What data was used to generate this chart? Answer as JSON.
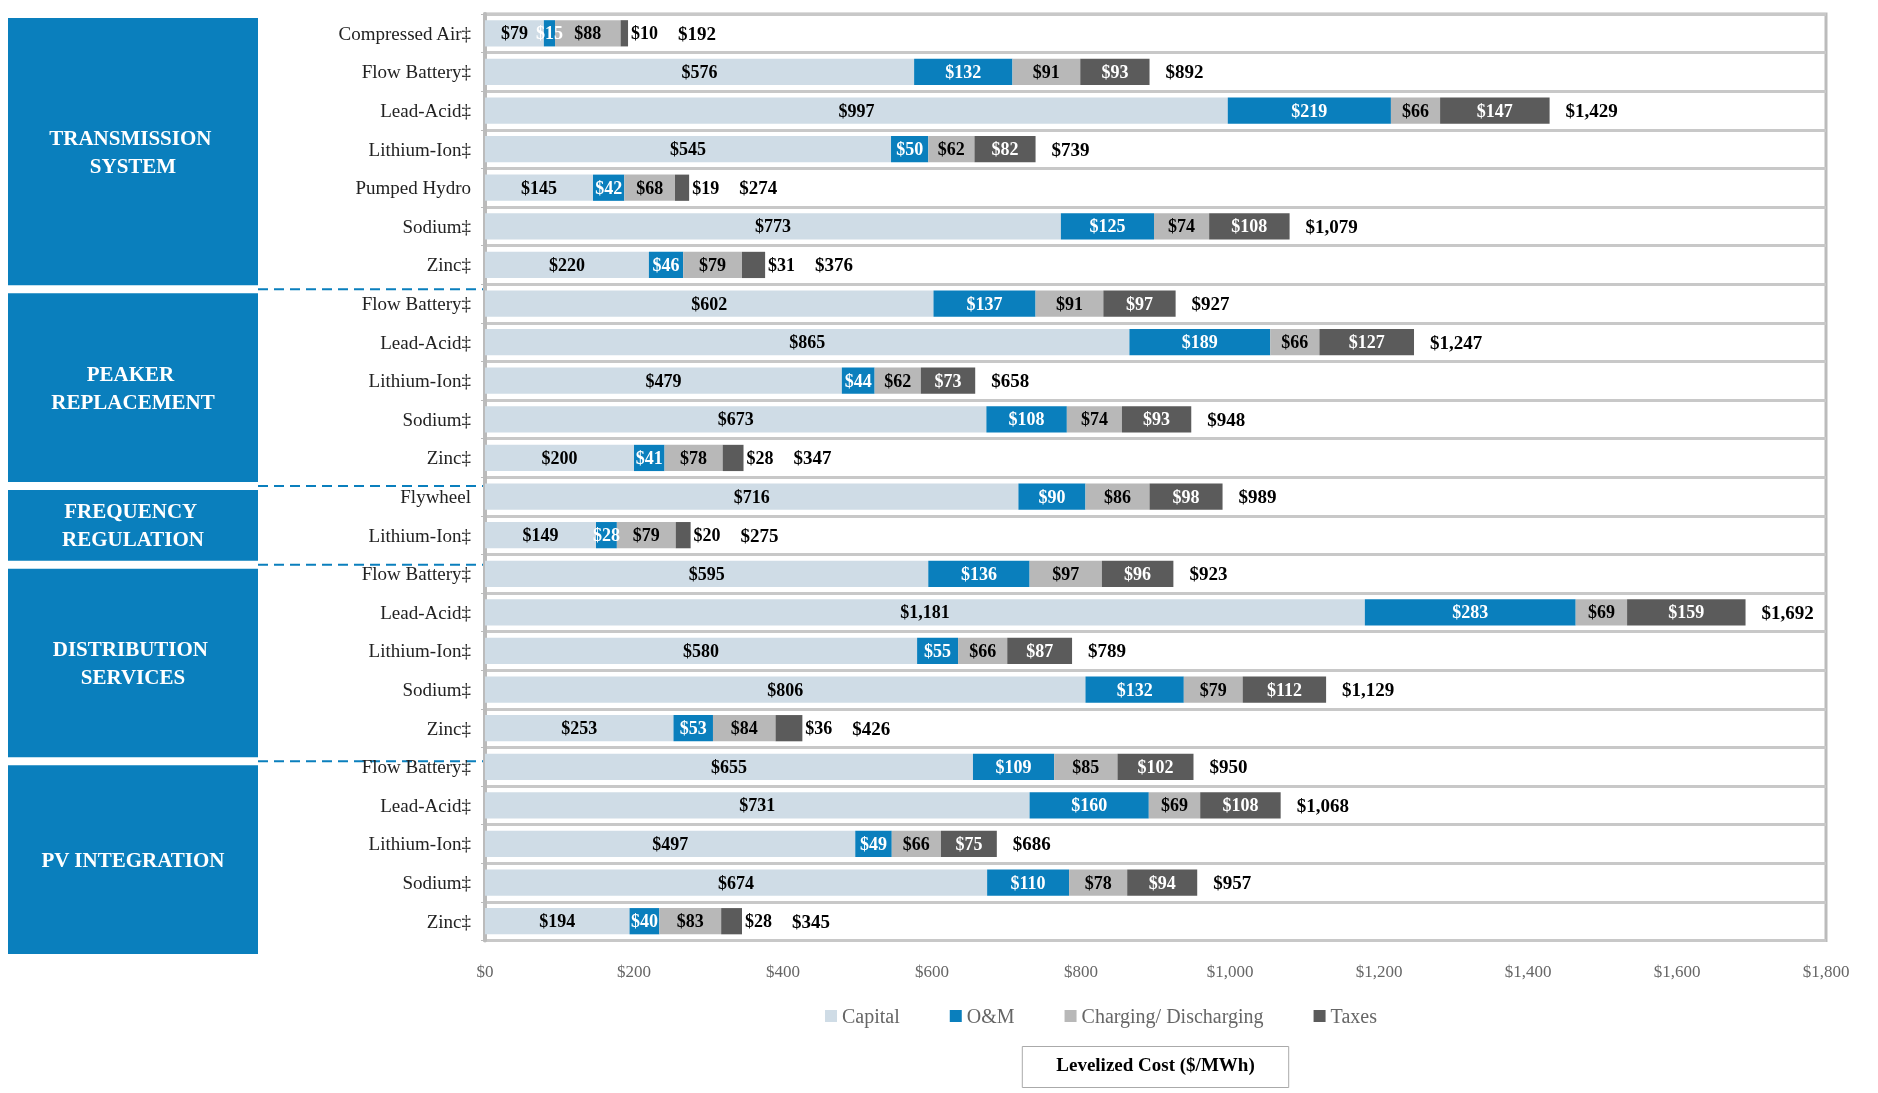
{
  "chart_data": {
    "type": "bar",
    "orientation": "horizontal",
    "stacked": true,
    "xlabel": "Levelized Cost ($/MWh)",
    "annotations": [
      "TRANSMISSION SYSTEM",
      "PEAKER REPLACEMENT",
      "FREQUENCY REGULATION",
      "DISTRIBUTION SERVICES",
      "PV INTEGRATION"
    ],
    "categories": [
      "Compressed Air‡",
      "Flow Battery‡",
      "Lead-Acid‡",
      "Lithium-Ion‡",
      "Pumped Hydro",
      "Sodium‡",
      "Zinc‡",
      "Flow Battery‡",
      "Lead-Acid‡",
      "Lithium-Ion‡",
      "Sodium‡",
      "Zinc‡",
      "Flywheel",
      "Lithium-Ion‡",
      "Flow Battery‡",
      "Lead-Acid‡",
      "Lithium-Ion‡",
      "Sodium‡",
      "Zinc‡",
      "Flow Battery‡",
      "Lead-Acid‡",
      "Lithium-Ion‡",
      "Sodium‡",
      "Zinc‡"
    ],
    "series": [
      {
        "name": "Capital",
        "color": "#cfdce6",
        "values": [
          79,
          576,
          997,
          545,
          145,
          773,
          220,
          602,
          865,
          479,
          673,
          200,
          716,
          149,
          595,
          1181,
          580,
          806,
          253,
          655,
          731,
          497,
          674,
          194
        ],
        "value_labels": [
          "$79",
          "$576",
          "$997",
          "$545",
          "$145",
          "$773",
          "$220",
          "$602",
          "$865",
          "$479",
          "$673",
          "$200",
          "$716",
          "$149",
          "$595",
          "$1,181",
          "$580",
          "$806",
          "$253",
          "$655",
          "$731",
          "$497",
          "$674",
          "$194"
        ]
      },
      {
        "name": "O&M",
        "color": "#0a7fbd",
        "values": [
          15,
          132,
          219,
          50,
          42,
          125,
          46,
          137,
          189,
          44,
          108,
          41,
          90,
          28,
          136,
          283,
          55,
          132,
          53,
          109,
          160,
          49,
          110,
          40
        ],
        "value_labels": [
          "$15",
          "$132",
          "$219",
          "$50",
          "$42",
          "$125",
          "$46",
          "$137",
          "$189",
          "$44",
          "$108",
          "$41",
          "$90",
          "$28",
          "$136",
          "$283",
          "$55",
          "$132",
          "$53",
          "$109",
          "$160",
          "$49",
          "$110",
          "$40"
        ]
      },
      {
        "name": "Charging/ Discharging",
        "color": "#b8b8b8",
        "values": [
          88,
          91,
          66,
          62,
          68,
          74,
          79,
          91,
          66,
          62,
          74,
          78,
          86,
          79,
          97,
          69,
          66,
          79,
          84,
          85,
          69,
          66,
          78,
          83
        ],
        "value_labels": [
          "$88",
          "$91",
          "$66",
          "$62",
          "$68",
          "$74",
          "$79",
          "$91",
          "$66",
          "$62",
          "$74",
          "$78",
          "$86",
          "$79",
          "$97",
          "$69",
          "$66",
          "$79",
          "$84",
          "$85",
          "$69",
          "$66",
          "$78",
          "$83"
        ]
      },
      {
        "name": "Taxes",
        "color": "#5b5b5b",
        "values": [
          10,
          93,
          147,
          82,
          19,
          108,
          31,
          97,
          127,
          73,
          93,
          28,
          98,
          20,
          96,
          159,
          87,
          112,
          36,
          102,
          108,
          75,
          94,
          28
        ],
        "value_labels": [
          "$10",
          "$93",
          "$147",
          "$82",
          "$19",
          "$108",
          "$31",
          "$97",
          "$127",
          "$73",
          "$93",
          "$28",
          "$98",
          "$20",
          "$96",
          "$159",
          "$87",
          "$112",
          "$36",
          "$102",
          "$108",
          "$75",
          "$94",
          "$28"
        ]
      }
    ],
    "totals": [
      "$192",
      "$892",
      "$1,429",
      "$739",
      "$274",
      "$1,079",
      "$376",
      "$927",
      "$1,247",
      "$658",
      "$948",
      "$347",
      "$989",
      "$275",
      "$923",
      "$1,692",
      "$789",
      "$1,129",
      "$426",
      "$950",
      "$1,068",
      "$686",
      "$957",
      "$345"
    ],
    "xlim": [
      0,
      1800
    ],
    "xticks": [
      {
        "value": 0,
        "label": "$0"
      },
      {
        "value": 200,
        "label": "$200"
      },
      {
        "value": 400,
        "label": "$400"
      },
      {
        "value": 600,
        "label": "$600"
      },
      {
        "value": 800,
        "label": "$800"
      },
      {
        "value": 1000,
        "label": "$1,000"
      },
      {
        "value": 1200,
        "label": "$1,200"
      },
      {
        "value": 1400,
        "label": "$1,400"
      },
      {
        "value": 1600,
        "label": "$1,600"
      },
      {
        "value": 1800,
        "label": "$1,800"
      }
    ],
    "grid": "y",
    "legend": "bottom"
  }
}
